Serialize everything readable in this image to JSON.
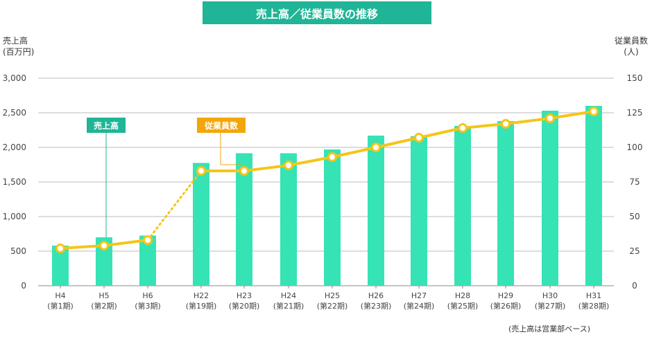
{
  "title": "売上高／従業員数の推移",
  "footnote": "(売上高は営業部ベース)",
  "colors": {
    "bar": "#36e3b4",
    "line": "#f5c518",
    "banner": "#1fb596",
    "employee_tag": "#f2a60c",
    "grid": "#bbbbbb"
  },
  "chart_data": {
    "type": "bar+line",
    "title": "売上高／従業員数の推移",
    "left_axis": {
      "label_line1": "売上高",
      "label_line2": "(百万円)",
      "ylim": [
        0,
        3000
      ],
      "ticks": [
        0,
        500,
        1000,
        1500,
        2000,
        2500,
        3000
      ],
      "tick_labels": [
        "0",
        "500",
        "1,000",
        "1,500",
        "2,000",
        "2,500",
        "3,000"
      ]
    },
    "right_axis": {
      "label_line1": "従業員数",
      "label_line2": "(人)",
      "ylim": [
        0,
        150
      ],
      "ticks": [
        0,
        25,
        50,
        75,
        100,
        125,
        150
      ],
      "tick_labels": [
        "0",
        "25",
        "50",
        "75",
        "100",
        "125",
        "150"
      ]
    },
    "categories": [
      {
        "era": "H4",
        "period": "(第1期)"
      },
      {
        "era": "H5",
        "period": "(第2期)"
      },
      {
        "era": "H6",
        "period": "(第3期)"
      },
      {
        "era": "H22",
        "period": "(第19期)"
      },
      {
        "era": "H23",
        "period": "(第20期)"
      },
      {
        "era": "H24",
        "period": "(第21期)"
      },
      {
        "era": "H25",
        "period": "(第22期)"
      },
      {
        "era": "H26",
        "period": "(第23期)"
      },
      {
        "era": "H27",
        "period": "(第24期)"
      },
      {
        "era": "H28",
        "period": "(第25期)"
      },
      {
        "era": "H29",
        "period": "(第26期)"
      },
      {
        "era": "H30",
        "period": "(第27期)"
      },
      {
        "era": "H31",
        "period": "(第28期)"
      }
    ],
    "series": [
      {
        "name": "売上高",
        "type": "bar",
        "axis": "left",
        "values": [
          580,
          700,
          725,
          1775,
          1915,
          1915,
          1970,
          2170,
          2160,
          2310,
          2380,
          2530,
          2600
        ]
      },
      {
        "name": "従業員数",
        "type": "line",
        "axis": "right",
        "values": [
          27,
          29,
          33,
          83,
          83,
          87,
          93,
          100,
          107,
          114,
          117,
          121,
          126
        ],
        "dotted_between": [
          2,
          3
        ]
      }
    ],
    "grid": true
  }
}
